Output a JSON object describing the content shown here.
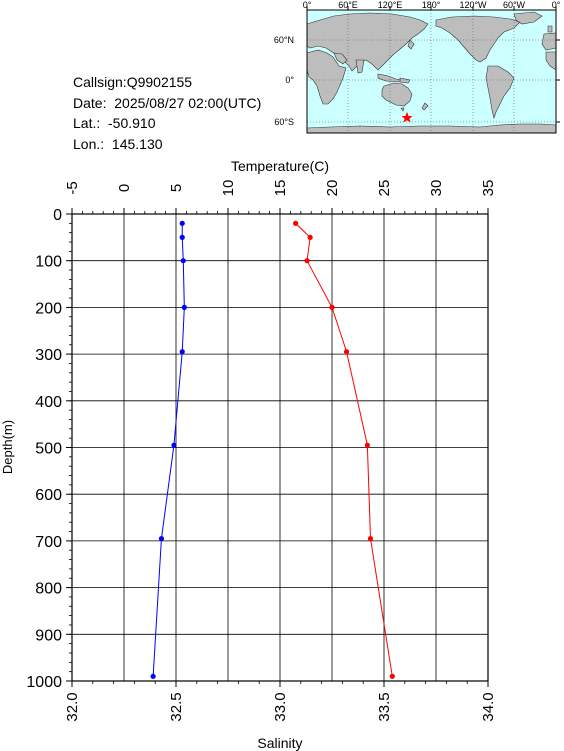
{
  "station": {
    "callsign": "Callsign:Q9902155",
    "date": "Date:  2025/08/27 02:00(UTC)",
    "lat": "Lat.:  -50.910",
    "lon": "Lon.:  145.130"
  },
  "map": {
    "top_labels": [
      "0°",
      "60°E",
      "120°E",
      "180°",
      "120°W",
      "60°W",
      "0°"
    ],
    "right_labels": [
      "60°N",
      "0°",
      "60°S"
    ],
    "ocean_color": "#ccffff",
    "land_color": "#bdbdbd",
    "marker": "star-icon",
    "marker_color": "#ff0000"
  },
  "chart_data": {
    "type": "line",
    "top_axis_label": "Temperature(C)",
    "bottom_axis_label": "Salinity",
    "left_axis_label": "Depth(m)",
    "temperature_ticks": [
      "-5",
      "0",
      "5",
      "10",
      "15",
      "20",
      "25",
      "30",
      "35"
    ],
    "salinity_ticks": [
      "32.0",
      "32.5",
      "33.0",
      "33.5",
      "34.0"
    ],
    "depth_ticks": [
      "0",
      "100",
      "200",
      "300",
      "400",
      "500",
      "600",
      "700",
      "800",
      "900",
      "1000"
    ],
    "temperature_range": [
      -5,
      35
    ],
    "salinity_range": [
      32.0,
      34.0
    ],
    "depth_range": [
      0,
      1000
    ],
    "grid": true,
    "series": [
      {
        "name": "Temperature",
        "color": "#ff0000",
        "x": [
          16.5,
          17.9,
          17.6,
          20.0,
          21.4,
          23.4,
          23.7,
          25.8
        ],
        "depth": [
          20,
          50,
          100,
          200,
          295,
          495,
          695,
          990
        ]
      },
      {
        "name": "Salinity",
        "color": "#0000ff",
        "x": [
          32.53,
          32.53,
          32.535,
          32.54,
          32.53,
          32.49,
          32.43,
          32.39
        ],
        "depth": [
          20,
          50,
          100,
          200,
          295,
          495,
          695,
          990
        ]
      }
    ]
  }
}
